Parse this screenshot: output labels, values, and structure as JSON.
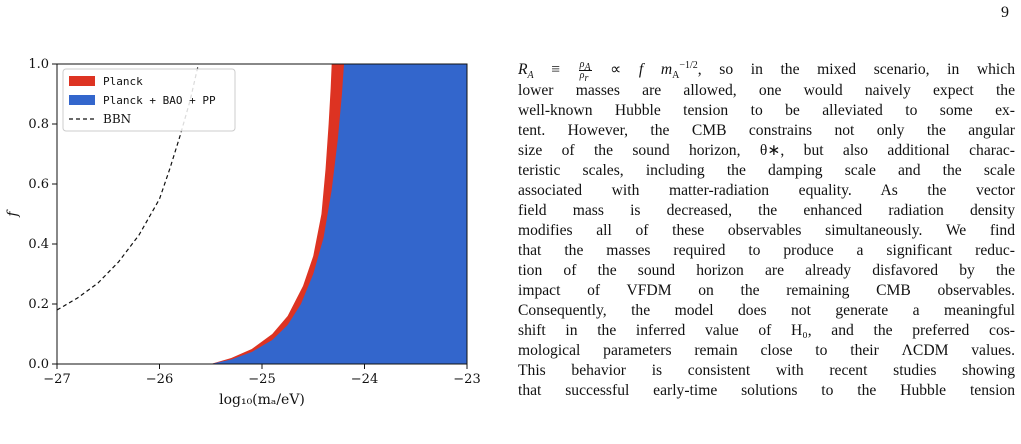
{
  "page_number": "9",
  "chart_data": {
    "type": "area",
    "xlabel": "log₁₀(mₐ/eV)",
    "ylabel": "f",
    "xlim": [
      -27,
      -23
    ],
    "ylim": [
      0.0,
      1.0
    ],
    "x_ticks": [
      -27,
      -26,
      -25,
      -24,
      -23
    ],
    "x_tick_labels": [
      "−27",
      "−26",
      "−25",
      "−24",
      "−23"
    ],
    "y_ticks": [
      0.0,
      0.2,
      0.4,
      0.6,
      0.8,
      1.0
    ],
    "y_tick_labels": [
      "0.0",
      "0.2",
      "0.4",
      "0.6",
      "0.8",
      "1.0"
    ],
    "grid": false,
    "legend_position": "top-left",
    "series": [
      {
        "name": "Planck",
        "color": "#dd3322",
        "kind": "region",
        "boundary": [
          {
            "x": -25.5,
            "f": 0.0
          },
          {
            "x": -25.3,
            "f": 0.02
          },
          {
            "x": -25.1,
            "f": 0.05
          },
          {
            "x": -24.9,
            "f": 0.1
          },
          {
            "x": -24.75,
            "f": 0.16
          },
          {
            "x": -24.6,
            "f": 0.26
          },
          {
            "x": -24.5,
            "f": 0.36
          },
          {
            "x": -24.42,
            "f": 0.5
          },
          {
            "x": -24.38,
            "f": 0.65
          },
          {
            "x": -24.35,
            "f": 0.8
          },
          {
            "x": -24.33,
            "f": 0.92
          },
          {
            "x": -24.32,
            "f": 1.0
          }
        ]
      },
      {
        "name": "Planck + BAO + PP",
        "color": "#3366cc",
        "kind": "region",
        "boundary": [
          {
            "x": -25.5,
            "f": 0.0
          },
          {
            "x": -25.3,
            "f": 0.015
          },
          {
            "x": -25.1,
            "f": 0.04
          },
          {
            "x": -24.9,
            "f": 0.08
          },
          {
            "x": -24.75,
            "f": 0.13
          },
          {
            "x": -24.62,
            "f": 0.2
          },
          {
            "x": -24.5,
            "f": 0.3
          },
          {
            "x": -24.4,
            "f": 0.42
          },
          {
            "x": -24.32,
            "f": 0.58
          },
          {
            "x": -24.26,
            "f": 0.75
          },
          {
            "x": -24.22,
            "f": 0.9
          },
          {
            "x": -24.2,
            "f": 1.0
          }
        ]
      },
      {
        "name": "BBN",
        "color": "#111111",
        "kind": "dashed-line",
        "points": [
          {
            "x": -27.0,
            "f": 0.18
          },
          {
            "x": -26.8,
            "f": 0.22
          },
          {
            "x": -26.6,
            "f": 0.27
          },
          {
            "x": -26.4,
            "f": 0.34
          },
          {
            "x": -26.2,
            "f": 0.43
          },
          {
            "x": -26.0,
            "f": 0.55
          },
          {
            "x": -25.9,
            "f": 0.65
          },
          {
            "x": -25.8,
            "f": 0.76
          },
          {
            "x": -25.7,
            "f": 0.88
          },
          {
            "x": -25.62,
            "f": 1.0
          }
        ]
      }
    ],
    "legend": [
      {
        "label": "Planck",
        "style": "red-box",
        "font": "mono"
      },
      {
        "label": "Planck + BAO + PP",
        "style": "blue-box",
        "font": "mono"
      },
      {
        "label": "BBN",
        "style": "dashed",
        "font": "serif"
      }
    ]
  },
  "text": {
    "line1_tail": ", so in the mixed scenario, in which",
    "lines": [
      "lower masses are allowed, one would naively expect the",
      "well-known Hubble tension to be alleviated to some ex-",
      "tent. However, the CMB constrains not only the angular",
      "size of the sound horizon, θ∗, but also additional charac-",
      "teristic scales, including the damping scale and the scale",
      "associated with matter-radiation equality. As the vector",
      "field mass is decreased, the enhanced radiation density",
      "modifies all of these observables simultaneously. We find",
      "that the masses required to produce a significant reduc-",
      "tion of the sound horizon are already disfavored by the",
      "impact of VFDM on the remaining CMB observables.",
      "Consequently, the model does not generate a meaningful",
      "shift in the inferred value of H₀, and the preferred cos-",
      "mological parameters remain close to their ΛCDM values.",
      "This behavior is consistent with recent studies showing",
      "that successful early-time solutions to the Hubble tension"
    ]
  }
}
